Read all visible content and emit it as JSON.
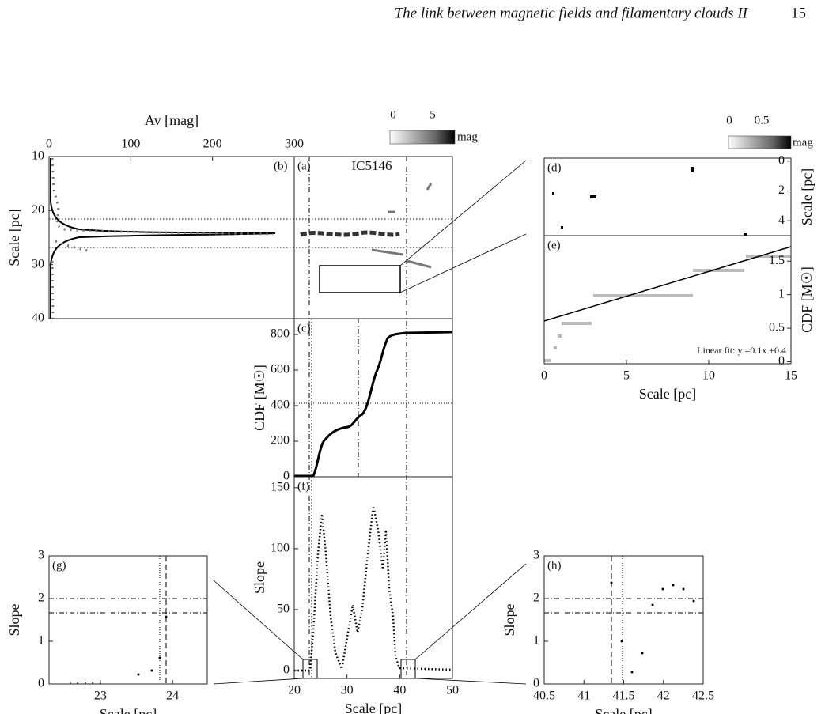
{
  "header": {
    "running_title": "The link between magnetic fields and filamentary clouds II",
    "page_number": "15"
  },
  "figure": {
    "colorbars": [
      {
        "ticks": [
          "0",
          "5"
        ],
        "unit": "mag"
      },
      {
        "ticks": [
          "0",
          "0.5"
        ],
        "unit": "mag"
      }
    ],
    "panels": [
      {
        "label": "(b)",
        "xlabel": "Av [mag]",
        "ylabel": "Scale [pc]",
        "xlim": [
          0,
          300
        ],
        "xticks": [
          0,
          100,
          200,
          300
        ],
        "ylim": [
          10,
          40
        ],
        "yticks": [
          10,
          20,
          30,
          40
        ]
      },
      {
        "label": "(a)",
        "name": "IC5146"
      },
      {
        "label": "(c)",
        "ylabel": "CDF [M☉]",
        "ylim": [
          0,
          889
        ],
        "yticks": [
          0,
          200,
          400,
          600,
          800
        ]
      },
      {
        "label": "(f)",
        "xlabel": "Scale [pc]",
        "ylabel": "Slope",
        "xlim": [
          20,
          50
        ],
        "xticks": [
          20,
          30,
          40,
          50
        ],
        "ylim": [
          -6.5,
          159
        ],
        "yticks": [
          0,
          50,
          100,
          150
        ]
      },
      {
        "label": "(d)",
        "ylabel": "Scale [pc]",
        "ylim": [
          -0.2,
          5
        ],
        "yticks": [
          0,
          2,
          4
        ]
      },
      {
        "label": "(e)",
        "xlabel": "Scale [pc]",
        "ylabel": "CDF [M☉]",
        "xlim": [
          0,
          15
        ],
        "xticks": [
          0,
          5,
          10,
          15
        ],
        "ylim": [
          -0.03,
          1.88
        ],
        "yticks": [
          0,
          0.5,
          1,
          1.5
        ],
        "annotation": "Linear fit: y =0.1x +0.4"
      },
      {
        "label": "(g)",
        "xlabel": "Scale [pc]",
        "ylabel": "Slope",
        "xlim": [
          22.29,
          24.48
        ],
        "xticks": [
          23,
          24
        ],
        "ylim": [
          0,
          3
        ],
        "yticks": [
          0,
          1,
          2,
          3
        ]
      },
      {
        "label": "(h)",
        "xlabel": "Scale [pc]",
        "ylabel": "Slope",
        "xlim": [
          40.5,
          42.5
        ],
        "xticks": [
          40.5,
          41,
          41.5,
          42,
          42.5
        ],
        "ylim": [
          0,
          3
        ],
        "yticks": [
          0,
          1,
          2,
          3
        ]
      }
    ]
  }
}
